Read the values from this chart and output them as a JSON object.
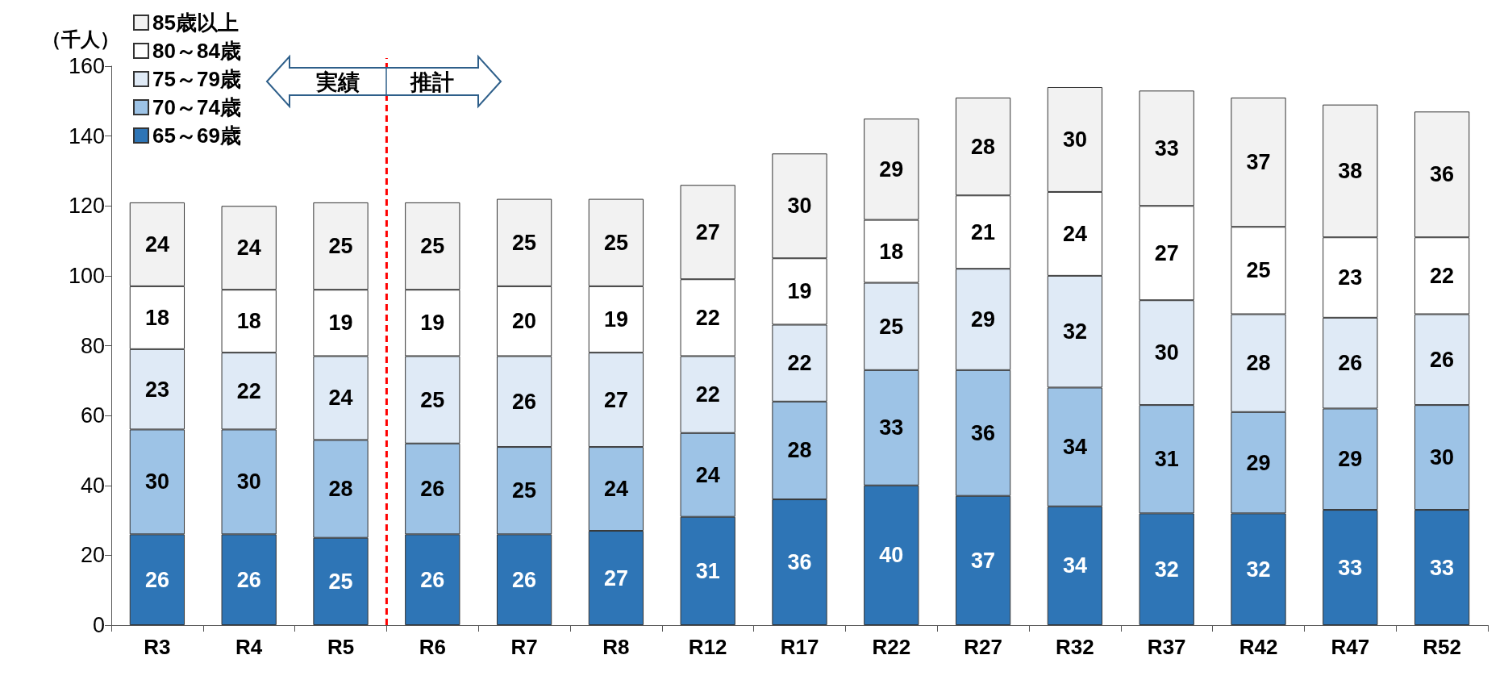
{
  "chart_data": {
    "type": "bar",
    "stacked": true,
    "ylabel": "（千人）",
    "categories": [
      "R3",
      "R4",
      "R5",
      "R6",
      "R7",
      "R8",
      "R12",
      "R17",
      "R22",
      "R27",
      "R32",
      "R37",
      "R42",
      "R47",
      "R52"
    ],
    "series": [
      {
        "name": "65～69歳",
        "color": "#2e75b6",
        "values": [
          26,
          26,
          25,
          26,
          26,
          27,
          31,
          36,
          40,
          37,
          34,
          32,
          32,
          33,
          33
        ]
      },
      {
        "name": "70～74歳",
        "color": "#9dc3e6",
        "values": [
          30,
          30,
          28,
          26,
          25,
          24,
          24,
          28,
          33,
          36,
          34,
          31,
          29,
          29,
          30
        ]
      },
      {
        "name": "75～79歳",
        "color": "#dfeaf6",
        "values": [
          23,
          22,
          24,
          25,
          26,
          27,
          22,
          22,
          25,
          29,
          32,
          30,
          28,
          26,
          26
        ]
      },
      {
        "name": "80～84歳",
        "color": "#ffffff",
        "values": [
          18,
          18,
          19,
          19,
          20,
          19,
          22,
          19,
          18,
          21,
          24,
          27,
          25,
          23,
          22
        ]
      },
      {
        "name": "85歳以上",
        "color": "#f2f2f2",
        "values": [
          24,
          24,
          25,
          25,
          25,
          25,
          27,
          30,
          29,
          28,
          30,
          33,
          37,
          38,
          36
        ]
      }
    ],
    "ylim": [
      0,
      160
    ],
    "yticks": [
      0,
      20,
      40,
      60,
      80,
      100,
      120,
      140,
      160
    ],
    "grid": false,
    "legend": "top left",
    "data_labels": true,
    "ref_lines": [
      {
        "axis": "x",
        "value": "R6",
        "color": "#ff0000",
        "line_style": "dashed"
      }
    ],
    "annotations": [
      "実績",
      "推計"
    ]
  }
}
